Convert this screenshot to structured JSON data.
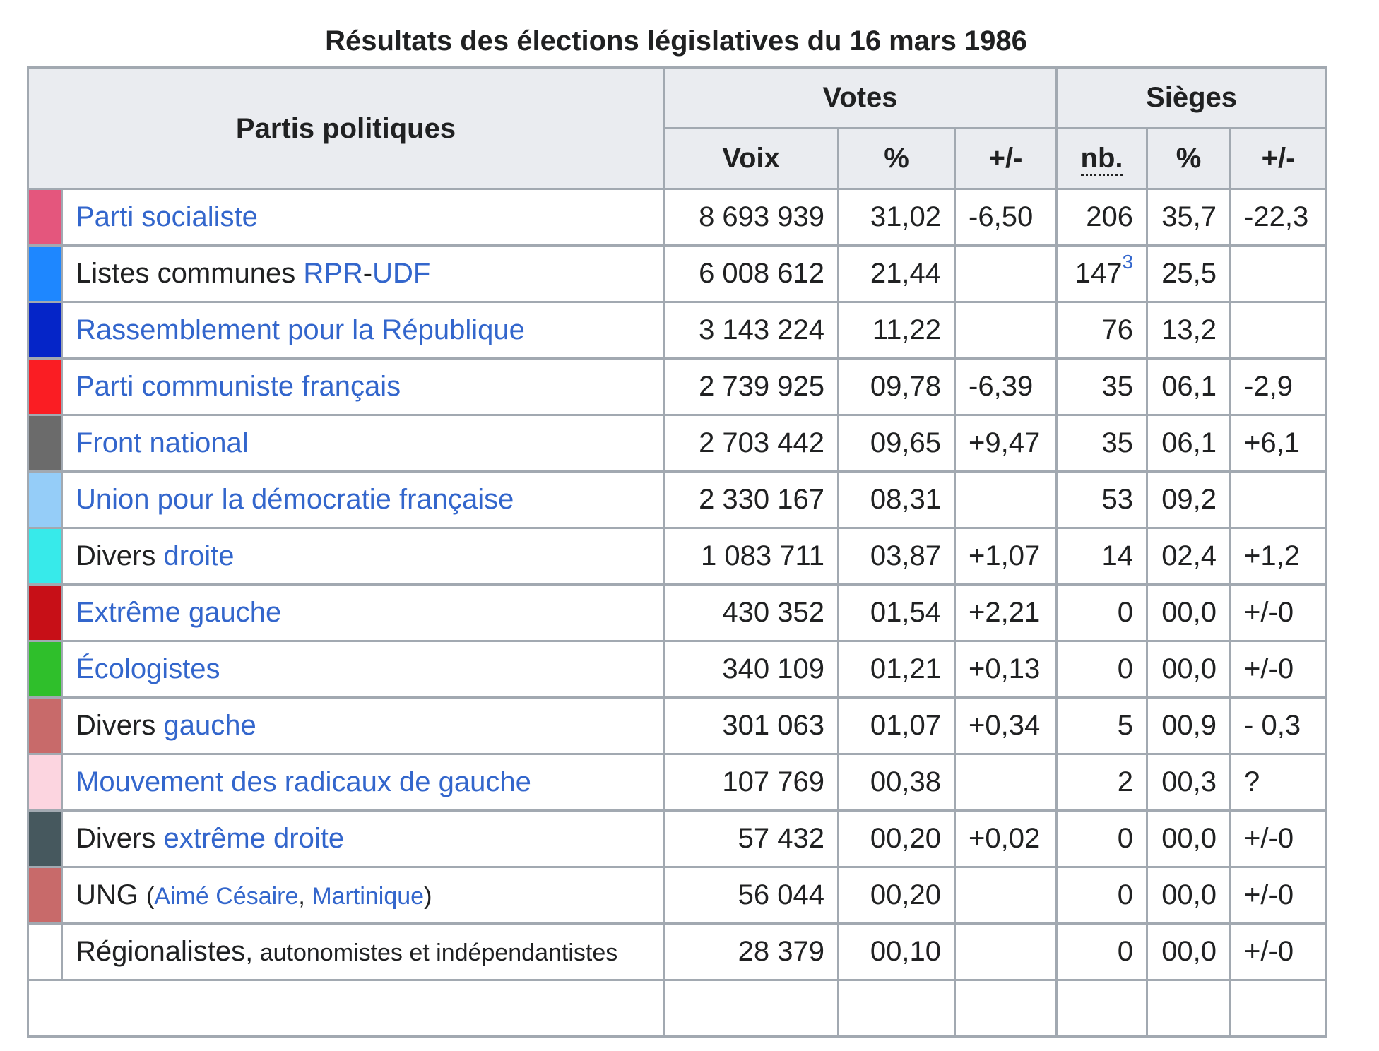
{
  "caption": "Résultats des élections législatives du 16 mars 1986",
  "headers": {
    "parties": "Partis politiques",
    "votes": "Votes",
    "seats": "Sièges",
    "voix": "Voix",
    "votes_pct": "%",
    "votes_delta": "+/-",
    "seats_nb": "nb.",
    "seats_pct": "%",
    "seats_delta": "+/-"
  },
  "rows": [
    {
      "color": "#e4567d",
      "parts": [
        {
          "text": "Parti socialiste",
          "link": true
        }
      ],
      "voix": "8 693 939",
      "pct": "31,02",
      "delta": "-6,50",
      "seats": "206",
      "note": "",
      "seats_pct": "35,7",
      "seats_delta": "-22,3"
    },
    {
      "color": "#1e87ff",
      "parts": [
        {
          "text": "Listes communes ",
          "link": false
        },
        {
          "text": "RPR",
          "link": true
        },
        {
          "text": "-",
          "link": false
        },
        {
          "text": "UDF",
          "link": true
        }
      ],
      "voix": "6 008 612",
      "pct": "21,44",
      "delta": "",
      "seats": "147",
      "note": "3",
      "seats_pct": "25,5",
      "seats_delta": ""
    },
    {
      "color": "#0525c8",
      "parts": [
        {
          "text": "Rassemblement pour la République",
          "link": true
        }
      ],
      "voix": "3 143 224",
      "pct": "11,22",
      "delta": "",
      "seats": "76",
      "note": "",
      "seats_pct": "13,2",
      "seats_delta": ""
    },
    {
      "color": "#fa1d23",
      "parts": [
        {
          "text": "Parti communiste français",
          "link": true
        }
      ],
      "voix": "2 739 925",
      "pct": "09,78",
      "delta": "-6,39",
      "seats": "35",
      "note": "",
      "seats_pct": "06,1",
      "seats_delta": "-2,9"
    },
    {
      "color": "#6b6b6b",
      "parts": [
        {
          "text": "Front national",
          "link": true
        }
      ],
      "voix": "2 703 442",
      "pct": "09,65",
      "delta": "+9,47",
      "seats": "35",
      "note": "",
      "seats_pct": "06,1",
      "seats_delta": "+6,1"
    },
    {
      "color": "#95cdf8",
      "parts": [
        {
          "text": "Union pour la démocratie française",
          "link": true
        }
      ],
      "voix": "2 330 167",
      "pct": "08,31",
      "delta": "",
      "seats": "53",
      "note": "",
      "seats_pct": "09,2",
      "seats_delta": ""
    },
    {
      "color": "#37eaea",
      "parts": [
        {
          "text": "Divers ",
          "link": false
        },
        {
          "text": "droite",
          "link": true
        }
      ],
      "voix": "1 083 711",
      "pct": "03,87",
      "delta": "+1,07",
      "seats": "14",
      "note": "",
      "seats_pct": "02,4",
      "seats_delta": "+1,2"
    },
    {
      "color": "#c70f17",
      "parts": [
        {
          "text": "Extrême gauche",
          "link": true
        }
      ],
      "voix": "430 352",
      "pct": "01,54",
      "delta": "+2,21",
      "seats": "0",
      "note": "",
      "seats_pct": "00,0",
      "seats_delta": "+/-0"
    },
    {
      "color": "#2fbf2b",
      "parts": [
        {
          "text": "Écologistes",
          "link": true
        }
      ],
      "voix": "340 109",
      "pct": "01,21",
      "delta": "+0,13",
      "seats": "0",
      "note": "",
      "seats_pct": "00,0",
      "seats_delta": "+/-0"
    },
    {
      "color": "#c86a6a",
      "parts": [
        {
          "text": "Divers ",
          "link": false
        },
        {
          "text": "gauche",
          "link": true
        }
      ],
      "voix": "301 063",
      "pct": "01,07",
      "delta": "+0,34",
      "seats": "5",
      "note": "",
      "seats_pct": "00,9",
      "seats_delta": "- 0,3"
    },
    {
      "color": "#fcd5e0",
      "parts": [
        {
          "text": "Mouvement des radicaux de gauche",
          "link": true
        }
      ],
      "voix": "107 769",
      "pct": "00,38",
      "delta": "",
      "seats": "2",
      "note": "",
      "seats_pct": "00,3",
      "seats_delta": "?"
    },
    {
      "color": "#46585e",
      "parts": [
        {
          "text": "Divers ",
          "link": false
        },
        {
          "text": "extrême droite",
          "link": true
        }
      ],
      "voix": "57 432",
      "pct": "00,20",
      "delta": "+0,02",
      "seats": "0",
      "note": "",
      "seats_pct": "00,0",
      "seats_delta": "+/-0"
    },
    {
      "color": "#c86a6a",
      "parts": [
        {
          "text": "UNG ",
          "link": false
        },
        {
          "text": "(",
          "link": false,
          "small": true
        },
        {
          "text": "Aimé Césaire",
          "link": true,
          "small": true
        },
        {
          "text": ", ",
          "link": false,
          "small": true
        },
        {
          "text": "Martinique",
          "link": true,
          "small": true
        },
        {
          "text": ")",
          "link": false,
          "small": true
        }
      ],
      "voix": "56 044",
      "pct": "00,20",
      "delta": "",
      "seats": "0",
      "note": "",
      "seats_pct": "00,0",
      "seats_delta": "+/-0"
    },
    {
      "color": "#ffffff",
      "parts": [
        {
          "text": "Régionalistes,",
          "link": false
        },
        {
          "text": " autonomistes et indépendantistes",
          "link": false,
          "small": true
        }
      ],
      "voix": "28 379",
      "pct": "00,10",
      "delta": "",
      "seats": "0",
      "note": "",
      "seats_pct": "00,0",
      "seats_delta": "+/-0"
    }
  ]
}
